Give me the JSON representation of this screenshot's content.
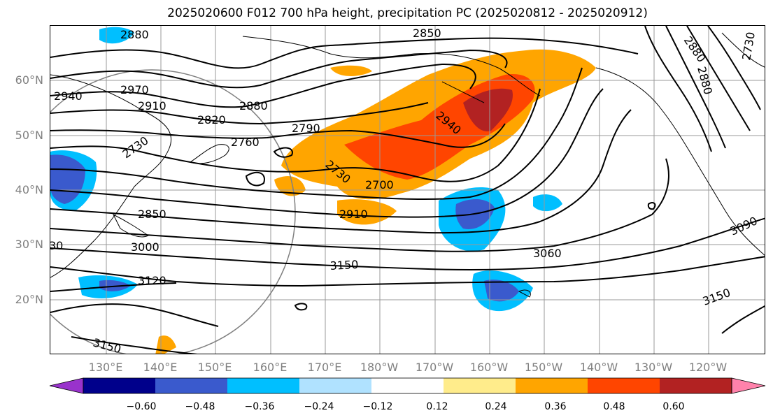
{
  "title": "2025020600 F012 700 hPa height, precipitation PC (2025020812 - 2025020912)",
  "lat_ticks": [
    "60°N",
    "50°N",
    "40°N",
    "30°N",
    "20°N"
  ],
  "lon_ticks": [
    "130°E",
    "140°E",
    "150°E",
    "160°E",
    "170°E",
    "180°W",
    "170°W",
    "160°W",
    "150°W",
    "140°W",
    "130°W",
    "120°W"
  ],
  "contour_labels": [
    "2880",
    "2850",
    "2940",
    "2970",
    "2910",
    "2820",
    "2880",
    "2790",
    "2760",
    "2730",
    "2730",
    "2700",
    "2940",
    "2850",
    "2910",
    "3000",
    "3060",
    "3150",
    "3120",
    "3150",
    "3150",
    "2880",
    "2880",
    "2730",
    "3090",
    "30"
  ],
  "colorbar": {
    "tick_labels": [
      "−0.60",
      "−0.48",
      "−0.36",
      "−0.24",
      "−0.12",
      "0.12",
      "0.24",
      "0.36",
      "0.48",
      "0.60"
    ],
    "colors": [
      "#9932cc",
      "#00008b",
      "#3a5acd",
      "#00bfff",
      "#b0e2ff",
      "#ffffff",
      "#ffec8b",
      "#ffa500",
      "#ff4500",
      "#b22222",
      "#ff82ab"
    ]
  }
}
